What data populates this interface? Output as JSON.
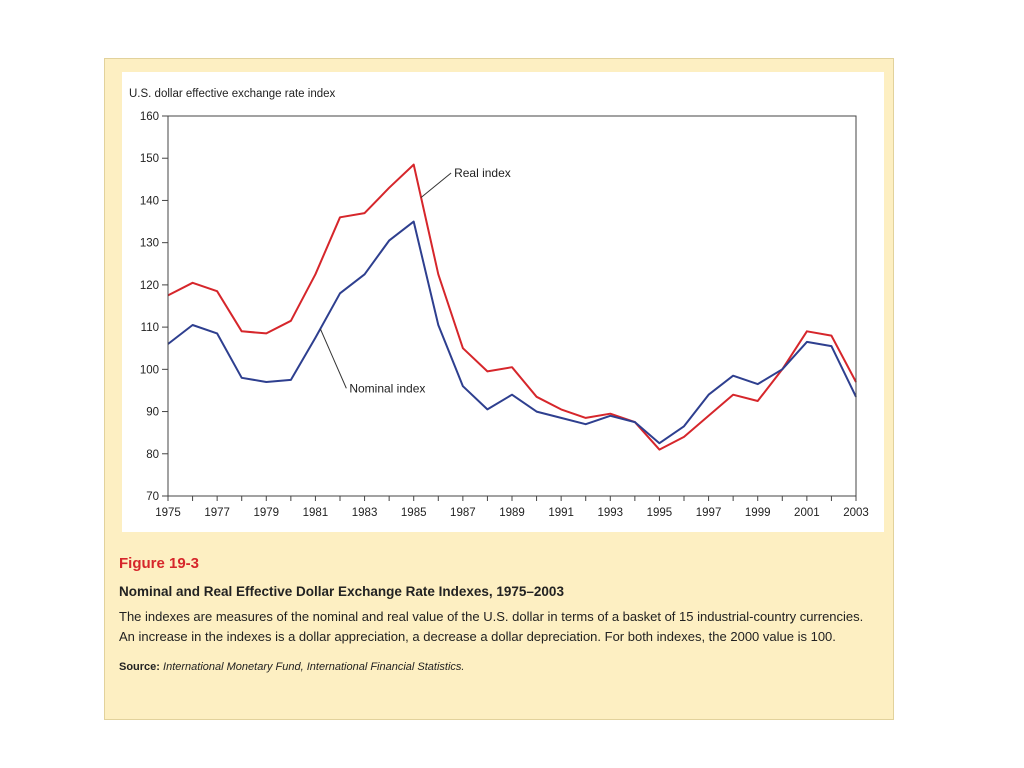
{
  "figure": {
    "label": "Figure 19-3",
    "title": "Nominal and Real Effective Dollar Exchange Rate Indexes, 1975–2003",
    "description": "The indexes are measures of the nominal and real value of the U.S. dollar in terms of a basket of 15 industrial-country currencies. An increase in the indexes is a dollar appreciation, a decrease a dollar depreciation. For both indexes, the 2000 value is 100.",
    "source_label": "Source:",
    "source_text": "International Monetary Fund, International Financial Statistics."
  },
  "colors": {
    "panel_background": "#fdefc2",
    "plot_background": "#ffffff",
    "real_series": "#d6262b",
    "nominal_series": "#2e3f8f",
    "figure_label": "#d6262b"
  },
  "chart_data": {
    "type": "line",
    "title": "",
    "ylabel": "U.S. dollar effective exchange rate index",
    "xlabel": "",
    "xlim": [
      1975,
      2003
    ],
    "ylim": [
      70,
      160
    ],
    "grid": false,
    "legend": "inline annotations",
    "x_ticks": [
      "1975",
      "1977",
      "1979",
      "1981",
      "1983",
      "1985",
      "1987",
      "1989",
      "1991",
      "1993",
      "1995",
      "1997",
      "1999",
      "2001",
      "2003"
    ],
    "y_ticks": [
      "70",
      "80",
      "90",
      "100",
      "110",
      "120",
      "130",
      "140",
      "150",
      "160"
    ],
    "x": [
      1975,
      1976,
      1977,
      1978,
      1979,
      1980,
      1981,
      1982,
      1983,
      1984,
      1985,
      1986,
      1987,
      1988,
      1989,
      1990,
      1991,
      1992,
      1993,
      1994,
      1995,
      1996,
      1997,
      1998,
      1999,
      2000,
      2001,
      2002,
      2003
    ],
    "series": [
      {
        "name": "Real index",
        "color": "#d6262b",
        "values": [
          117.5,
          120.5,
          118.5,
          109,
          108.5,
          111.5,
          122.5,
          136,
          137,
          143,
          148.5,
          122.5,
          105,
          99.5,
          100.5,
          93.5,
          90.5,
          88.5,
          89.5,
          87.5,
          81,
          84,
          89,
          94,
          92.5,
          100,
          109,
          108,
          97
        ]
      },
      {
        "name": "Nominal index",
        "color": "#2e3f8f",
        "values": [
          106,
          110.5,
          108.5,
          98,
          97,
          97.5,
          107.5,
          118,
          122.5,
          130.5,
          135,
          110.5,
          96,
          90.5,
          94,
          90,
          88.5,
          87,
          89,
          87.5,
          82.5,
          86.5,
          94,
          98.5,
          96.5,
          100,
          106.5,
          105.5,
          93.5
        ]
      }
    ],
    "annotations": [
      {
        "text": "Real index",
        "series": "Real index",
        "x": 1985.3
      },
      {
        "text": "Nominal index",
        "series": "Nominal index",
        "x": 1981.2
      }
    ]
  }
}
